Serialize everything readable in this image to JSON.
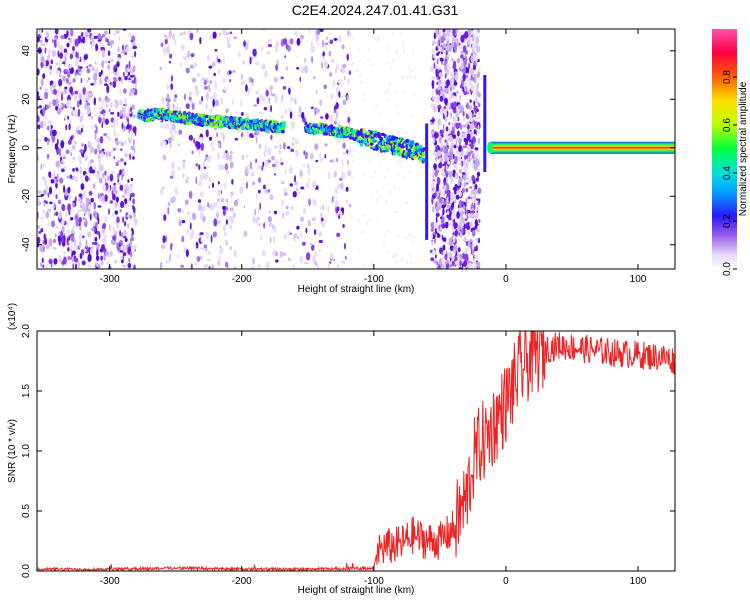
{
  "title": "C2E4.2024.247.01.41.G31",
  "colorbar": {
    "label": "Normalized spectral amplitude",
    "ticks": [
      "0.0",
      "0.2",
      "0.4",
      "0.6",
      "0.8"
    ]
  },
  "chart_data": [
    {
      "type": "heatmap",
      "name": "spectrogram",
      "xlabel": "Height of straight line (km)",
      "ylabel": "Frequency (Hz)",
      "xlim": [
        -355,
        128
      ],
      "ylim": [
        -50,
        49
      ],
      "xticks": [
        "-300",
        "-200",
        "-100",
        "0",
        "100"
      ],
      "yticks": [
        "-40",
        "-20",
        "0",
        "20",
        "40"
      ],
      "colorscale": [
        "#ffffff",
        "#d8c4f4",
        "#7a2be0",
        "#2b18ff",
        "#00c8ff",
        "#00ff60",
        "#b8ff00",
        "#ffd000",
        "#ff4000",
        "#ff0060",
        "#ff60c0"
      ],
      "signal_track_km_hz": [
        [
          -278,
          13
        ],
        [
          -260,
          14
        ],
        [
          -240,
          12
        ],
        [
          -220,
          11
        ],
        [
          -200,
          10
        ],
        [
          -180,
          9
        ],
        [
          -160,
          8
        ],
        [
          -140,
          8
        ],
        [
          -120,
          6
        ],
        [
          -100,
          3
        ],
        [
          -85,
          1
        ],
        [
          -70,
          -1
        ],
        [
          -62,
          -3
        ]
      ],
      "carrier_band": {
        "x_start": -12,
        "x_end": 128,
        "freq_hz": 0
      },
      "noise_regions_km": [
        [
          -355,
          -280
        ],
        [
          -262,
          -118
        ],
        [
          -56,
          -20
        ]
      ]
    },
    {
      "type": "line",
      "name": "snr",
      "xlabel": "Height of straight line (km)",
      "ylabel": "SNR (10 * v/v)",
      "multiplier": "(x10⁴)",
      "xlim": [
        -355,
        128
      ],
      "ylim": [
        0,
        2.0
      ],
      "xticks": [
        "-300",
        "-200",
        "-100",
        "0",
        "100"
      ],
      "yticks": [
        "0.0",
        "0.5",
        "1.0",
        "1.5",
        "2.0"
      ],
      "color": "#ee2222",
      "series": [
        {
          "x": [
            -355,
            -300,
            -250,
            -200,
            -150,
            -100,
            -97,
            -90,
            -80,
            -70,
            -60,
            -50,
            -40,
            -30,
            -25,
            -20,
            -15,
            -10,
            -5,
            0,
            10,
            20,
            30,
            40,
            60,
            80,
            100,
            120,
            128
          ],
          "y": [
            0.01,
            0.01,
            0.02,
            0.01,
            0.01,
            0.02,
            0.18,
            0.2,
            0.22,
            0.3,
            0.25,
            0.25,
            0.35,
            0.6,
            0.9,
            1.05,
            1.1,
            1.2,
            1.3,
            1.4,
            1.65,
            1.8,
            1.85,
            1.88,
            1.85,
            1.82,
            1.8,
            1.78,
            1.75
          ]
        }
      ]
    }
  ]
}
